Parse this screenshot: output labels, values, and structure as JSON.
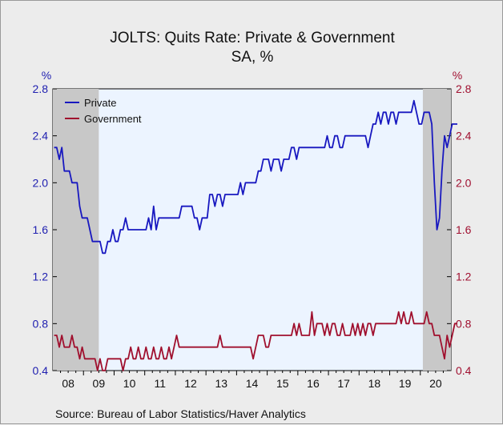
{
  "chart_data": {
    "type": "line",
    "title": "JOLTS: Quits Rate: Private & Government",
    "subtitle": "SA, %",
    "left_unit": "%",
    "right_unit": "%",
    "ylim": [
      0.4,
      2.8
    ],
    "yticks": [
      "0.4",
      "0.8",
      "1.2",
      "1.6",
      "2.0",
      "2.4",
      "2.8"
    ],
    "x_start": "2008-01",
    "x_end": "2020-12",
    "xticks": [
      "08",
      "09",
      "10",
      "11",
      "12",
      "13",
      "14",
      "15",
      "16",
      "17",
      "18",
      "19",
      "20"
    ],
    "recessions": [
      {
        "start": "2008-01",
        "end": "2009-06"
      },
      {
        "start": "2020-02",
        "end": "2020-12"
      }
    ],
    "legend_position": "top-left",
    "colors": {
      "private": "#1818c0",
      "government": "#a0102e",
      "plot_bg": "#ecf4ff",
      "recession": "#c8c8c8"
    },
    "series": [
      {
        "name": "Private",
        "color": "#1818c0",
        "values": [
          2.3,
          2.3,
          2.2,
          2.3,
          2.1,
          2.1,
          2.1,
          2.0,
          2.0,
          2.0,
          1.8,
          1.7,
          1.7,
          1.7,
          1.6,
          1.5,
          1.5,
          1.5,
          1.5,
          1.4,
          1.4,
          1.5,
          1.5,
          1.6,
          1.5,
          1.5,
          1.6,
          1.6,
          1.7,
          1.6,
          1.6,
          1.6,
          1.6,
          1.6,
          1.6,
          1.6,
          1.6,
          1.7,
          1.6,
          1.8,
          1.6,
          1.7,
          1.7,
          1.7,
          1.7,
          1.7,
          1.7,
          1.7,
          1.7,
          1.7,
          1.8,
          1.8,
          1.8,
          1.8,
          1.8,
          1.7,
          1.7,
          1.6,
          1.7,
          1.7,
          1.7,
          1.9,
          1.9,
          1.8,
          1.9,
          1.9,
          1.8,
          1.9,
          1.9,
          1.9,
          1.9,
          1.9,
          1.9,
          2.0,
          1.9,
          2.0,
          2.0,
          2.0,
          2.0,
          2.0,
          2.1,
          2.1,
          2.2,
          2.2,
          2.2,
          2.1,
          2.2,
          2.2,
          2.2,
          2.1,
          2.2,
          2.2,
          2.2,
          2.3,
          2.3,
          2.2,
          2.3,
          2.3,
          2.3,
          2.3,
          2.3,
          2.3,
          2.3,
          2.3,
          2.3,
          2.3,
          2.3,
          2.4,
          2.3,
          2.3,
          2.4,
          2.4,
          2.3,
          2.3,
          2.4,
          2.4,
          2.4,
          2.4,
          2.4,
          2.4,
          2.4,
          2.4,
          2.4,
          2.3,
          2.4,
          2.5,
          2.5,
          2.6,
          2.5,
          2.6,
          2.6,
          2.5,
          2.6,
          2.6,
          2.5,
          2.6,
          2.6,
          2.6,
          2.6,
          2.6,
          2.6,
          2.7,
          2.6,
          2.5,
          2.5,
          2.6,
          2.6,
          2.6,
          2.5,
          2.0,
          1.6,
          1.7,
          2.1,
          2.4,
          2.3,
          2.4,
          2.5,
          2.5,
          2.5
        ]
      },
      {
        "name": "Government",
        "color": "#a0102e",
        "values": [
          0.7,
          0.7,
          0.6,
          0.7,
          0.6,
          0.6,
          0.6,
          0.7,
          0.6,
          0.6,
          0.5,
          0.6,
          0.5,
          0.5,
          0.5,
          0.5,
          0.5,
          0.4,
          0.5,
          0.4,
          0.4,
          0.5,
          0.5,
          0.5,
          0.5,
          0.5,
          0.5,
          0.4,
          0.5,
          0.5,
          0.6,
          0.5,
          0.5,
          0.6,
          0.5,
          0.5,
          0.6,
          0.5,
          0.5,
          0.6,
          0.5,
          0.5,
          0.6,
          0.5,
          0.5,
          0.6,
          0.5,
          0.6,
          0.7,
          0.6,
          0.6,
          0.6,
          0.6,
          0.6,
          0.6,
          0.6,
          0.6,
          0.6,
          0.6,
          0.6,
          0.6,
          0.6,
          0.6,
          0.6,
          0.6,
          0.7,
          0.6,
          0.6,
          0.6,
          0.6,
          0.6,
          0.6,
          0.6,
          0.6,
          0.6,
          0.6,
          0.6,
          0.6,
          0.5,
          0.6,
          0.7,
          0.7,
          0.7,
          0.6,
          0.6,
          0.7,
          0.7,
          0.7,
          0.7,
          0.7,
          0.7,
          0.7,
          0.7,
          0.7,
          0.8,
          0.7,
          0.8,
          0.7,
          0.7,
          0.7,
          0.7,
          0.9,
          0.7,
          0.8,
          0.8,
          0.8,
          0.7,
          0.8,
          0.7,
          0.8,
          0.8,
          0.7,
          0.7,
          0.8,
          0.7,
          0.7,
          0.7,
          0.8,
          0.7,
          0.8,
          0.7,
          0.8,
          0.7,
          0.8,
          0.8,
          0.7,
          0.8,
          0.8,
          0.8,
          0.8,
          0.8,
          0.8,
          0.8,
          0.8,
          0.8,
          0.9,
          0.8,
          0.9,
          0.8,
          0.8,
          0.9,
          0.8,
          0.8,
          0.8,
          0.8,
          0.8,
          0.9,
          0.8,
          0.8,
          0.7,
          0.7,
          0.7,
          0.6,
          0.5,
          0.7,
          0.6,
          0.7,
          0.8,
          0.8
        ]
      }
    ],
    "source": "Source:  Bureau of Labor Statistics/Haver Analytics"
  }
}
